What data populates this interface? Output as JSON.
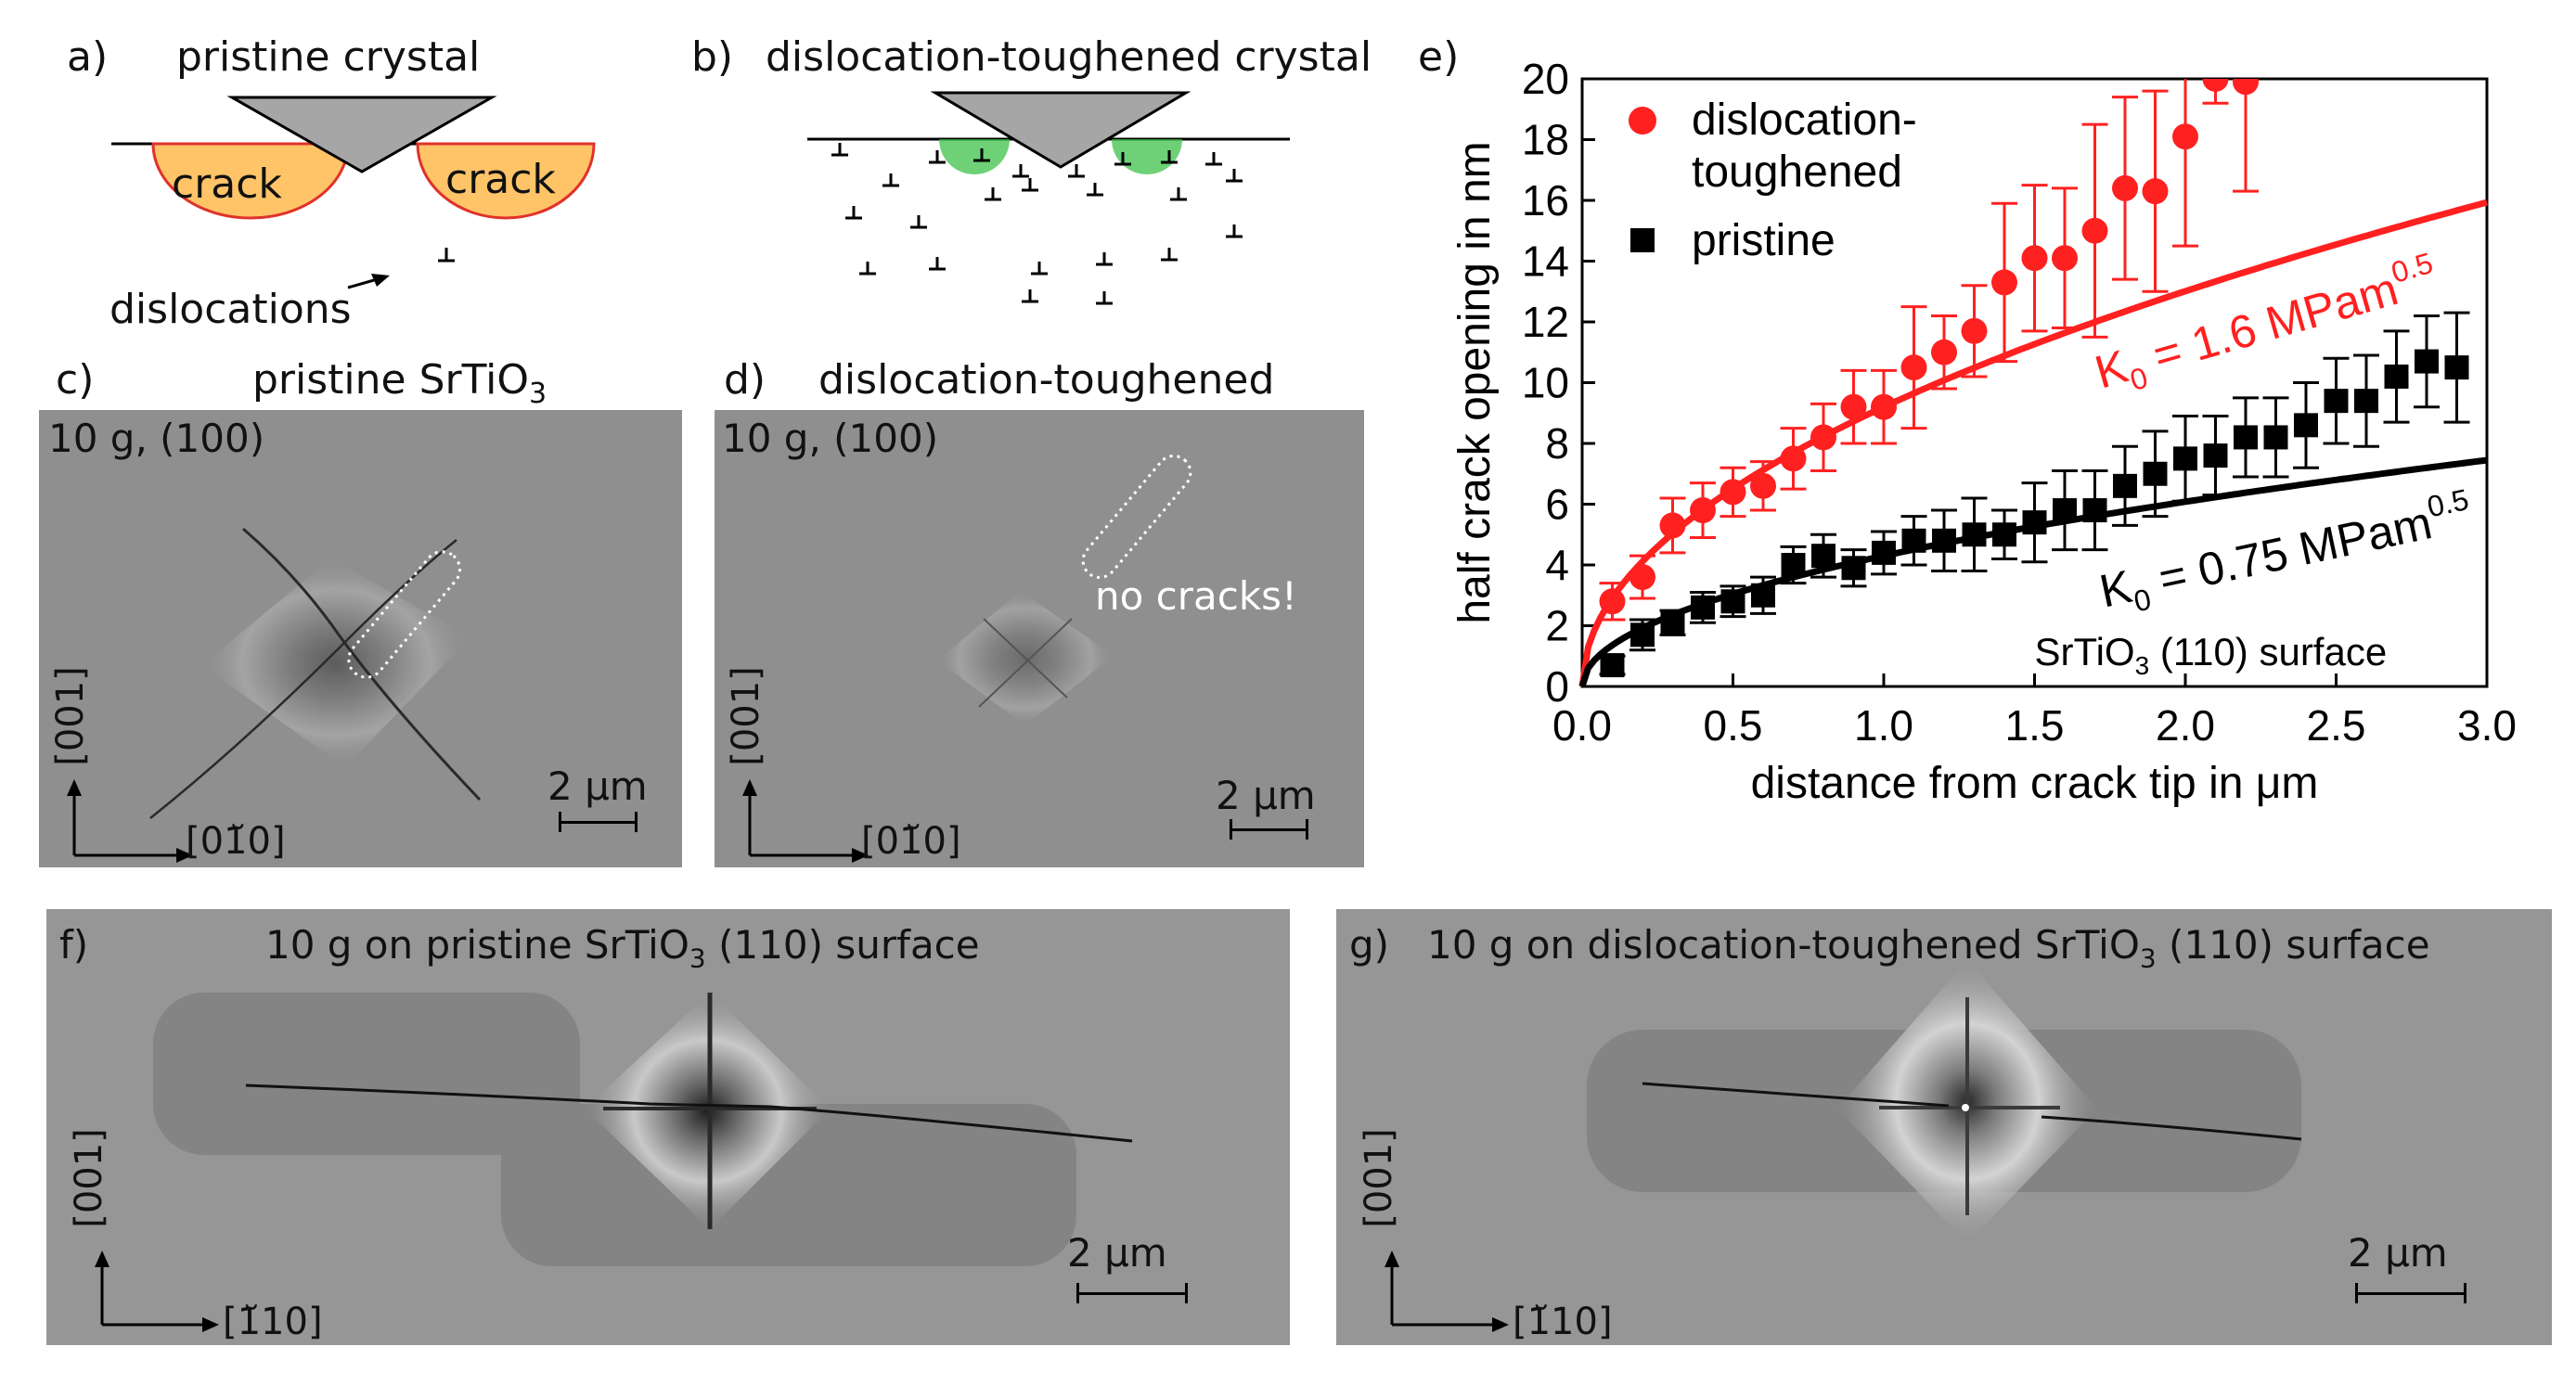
{
  "panels": {
    "a": {
      "letter": "a)",
      "title": "pristine crystal",
      "crack_left": "crack",
      "crack_right": "crack",
      "dislocations": "dislocations"
    },
    "b": {
      "letter": "b)",
      "title": "dislocation-toughened crystal"
    },
    "c": {
      "letter": "c)",
      "title_main": "pristine SrTiO",
      "title_sub": "3",
      "load": "10 g, (100)",
      "axis_up": "[001]",
      "axis_right": "[01̆0]",
      "scale": "2 μm"
    },
    "d": {
      "letter": "d)",
      "title": "dislocation-toughened",
      "load": "10 g, (100)",
      "note": "no cracks!",
      "axis_up": "[001]",
      "axis_right": "[01̆0]",
      "scale": "2 μm"
    },
    "e": {
      "letter": "e)"
    },
    "f": {
      "letter": "f)",
      "title_pre": "10 g on pristine SrTiO",
      "title_sub": "3",
      "title_post": " (110) surface",
      "axis_up": "[001]",
      "axis_right": "[1̆10]",
      "scale": "2 μm"
    },
    "g": {
      "letter": "g)",
      "title_pre": "10 g on dislocation-toughened SrTiO",
      "title_sub": "3",
      "title_post": " (110) surface",
      "axis_up": "[001]",
      "axis_right": "[1̆10]",
      "scale": "2 μm"
    }
  },
  "chart_data": {
    "type": "scatter",
    "xlabel": "distance from crack tip in μm",
    "ylabel": "half crack opening in nm",
    "xlim": [
      0,
      3.0
    ],
    "ylim": [
      0,
      20
    ],
    "xticks": [
      "0.0",
      "0.5",
      "1.0",
      "1.5",
      "2.0",
      "2.5",
      "3.0"
    ],
    "yticks": [
      "0",
      "2",
      "4",
      "6",
      "8",
      "10",
      "12",
      "14",
      "16",
      "18",
      "20"
    ],
    "legend_position": "top-left",
    "annotation": {
      "pre": "SrTiO",
      "sub": "3",
      "post": " (110) surface"
    },
    "series": [
      {
        "name": "dislocation-toughened",
        "marker": "circle",
        "color": "#ff2020",
        "x": [
          0.1,
          0.2,
          0.3,
          0.4,
          0.5,
          0.6,
          0.7,
          0.8,
          0.9,
          1.0,
          1.1,
          1.2,
          1.3,
          1.4,
          1.5,
          1.6,
          1.7,
          1.8,
          1.9,
          2.0,
          2.1,
          2.2
        ],
        "y": [
          2.8,
          3.6,
          5.3,
          5.8,
          6.4,
          6.6,
          7.5,
          8.2,
          9.2,
          9.2,
          10.5,
          11.0,
          11.7,
          13.3,
          14.1,
          14.1,
          15.0,
          16.4,
          16.3,
          18.1,
          20.0,
          19.9
        ],
        "err": [
          0.6,
          0.7,
          0.9,
          0.9,
          0.8,
          0.8,
          1.0,
          1.1,
          1.2,
          1.2,
          2.0,
          1.2,
          1.5,
          2.6,
          2.4,
          2.3,
          3.5,
          3.0,
          3.3,
          3.6,
          0.8,
          3.6
        ]
      },
      {
        "name": "pristine",
        "marker": "square",
        "color": "#000000",
        "x": [
          0.1,
          0.2,
          0.3,
          0.4,
          0.5,
          0.6,
          0.7,
          0.8,
          0.9,
          1.0,
          1.1,
          1.2,
          1.3,
          1.4,
          1.5,
          1.6,
          1.7,
          1.8,
          1.9,
          2.0,
          2.1,
          2.2,
          2.3,
          2.4,
          2.5,
          2.6,
          2.7,
          2.8,
          2.9
        ],
        "y": [
          0.7,
          1.7,
          2.1,
          2.6,
          2.8,
          3.0,
          4.0,
          4.3,
          3.9,
          4.4,
          4.8,
          4.8,
          5.0,
          5.0,
          5.4,
          5.8,
          5.8,
          6.6,
          7.0,
          7.5,
          7.6,
          8.2,
          8.2,
          8.6,
          9.4,
          9.4,
          10.2,
          10.7,
          10.5
        ],
        "err": [
          0.3,
          0.5,
          0.4,
          0.5,
          0.5,
          0.6,
          0.6,
          0.7,
          0.6,
          0.7,
          0.8,
          1.0,
          1.2,
          0.8,
          1.3,
          1.3,
          1.3,
          1.3,
          1.4,
          1.4,
          1.3,
          1.3,
          1.3,
          1.4,
          1.4,
          1.5,
          1.5,
          1.5,
          1.8
        ]
      }
    ],
    "fits": [
      {
        "K0_label": "K",
        "K0_sub": "0",
        "value_text": " = 1.6 MPam",
        "exp": "0.5",
        "color": "#ff2020",
        "amplitude": 9.2
      },
      {
        "K0_label": "K",
        "K0_sub": "0",
        "value_text": " = 0.75 MPam",
        "exp": "0.5",
        "color": "#000000",
        "amplitude": 4.3
      }
    ]
  },
  "colors": {
    "indenter": "#a6a6a6",
    "crack_fill": "#ffc468",
    "crack_edge": "#e0322a",
    "plastic_zone": "#3ec24a",
    "micrograph": "#8f8f8f",
    "toughened": "#ff2020",
    "pristine": "#000000"
  }
}
